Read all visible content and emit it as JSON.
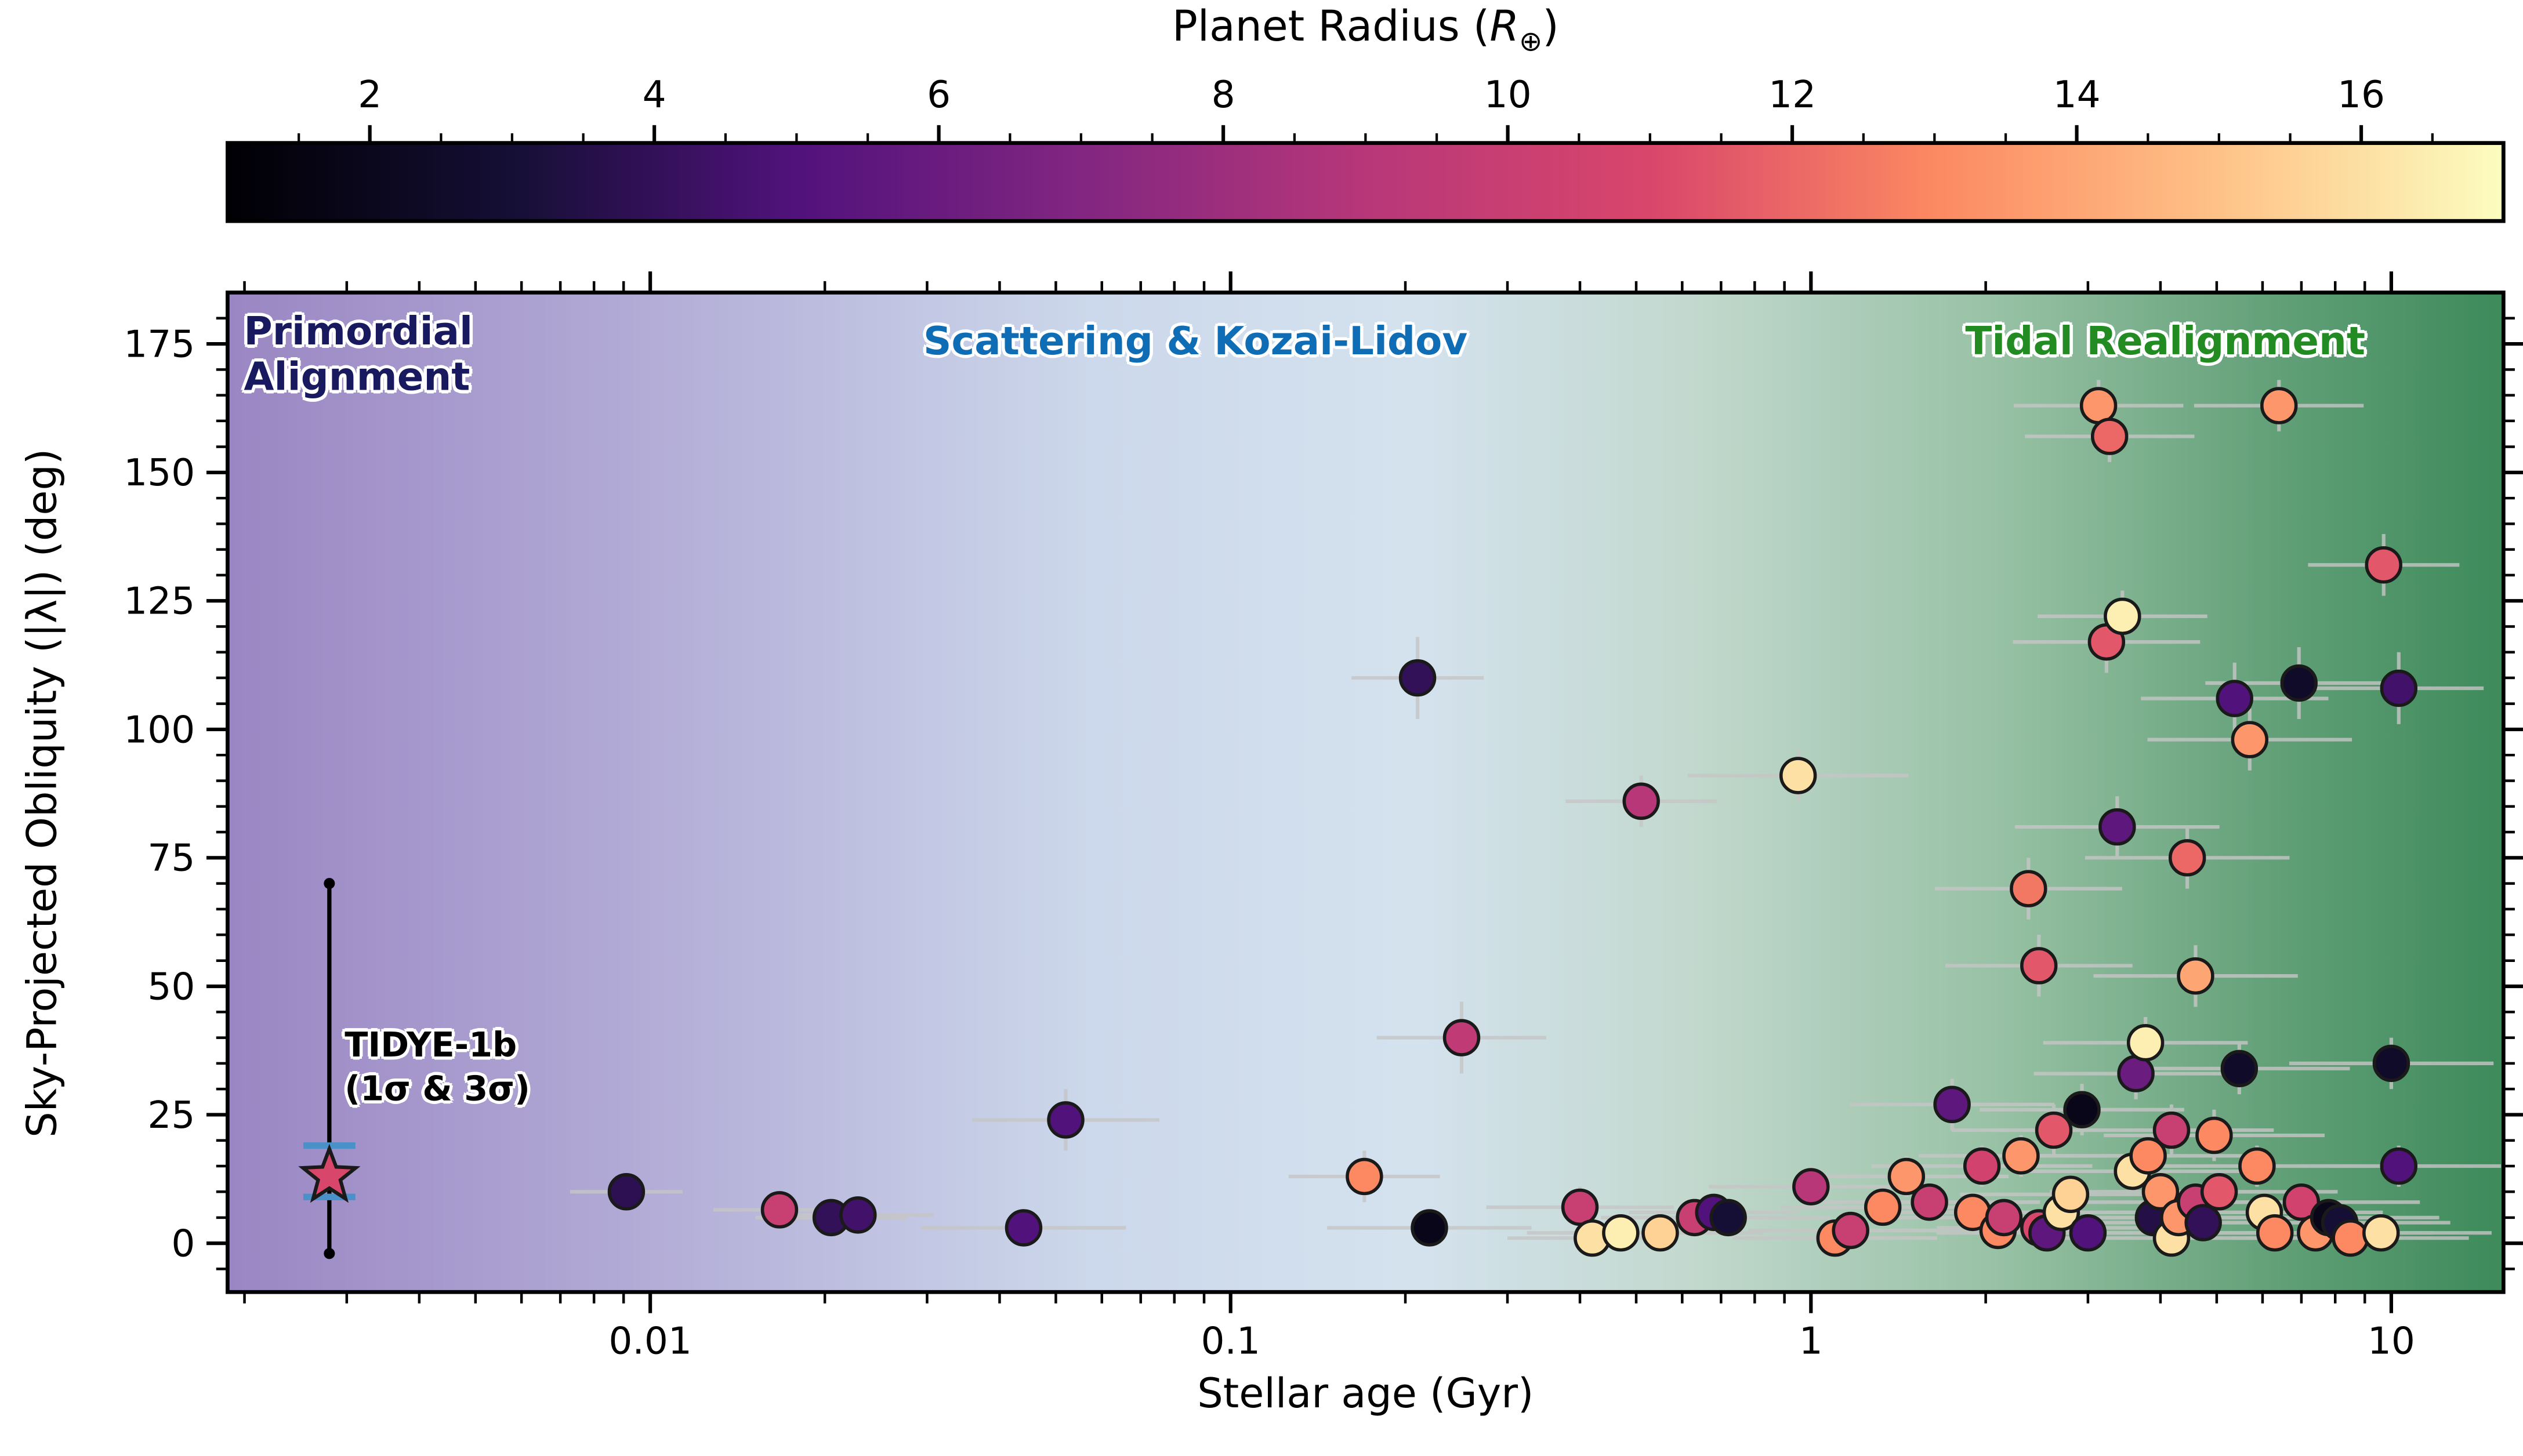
{
  "colorbar": {
    "title_pre": "Planet Radius (",
    "title_symbol": "R",
    "title_sub": "⊕",
    "title_post": ")",
    "ticks": [
      2,
      4,
      6,
      8,
      10,
      12,
      14,
      16
    ],
    "domain": [
      1,
      17
    ]
  },
  "axes": {
    "xlabel": "Stellar age (Gyr)",
    "ylabel": "Sky-Projected Obliquity (|λ|) (deg)"
  },
  "annotations": {
    "primordial": {
      "text": "Primordial\nAlignment",
      "color": "#191960"
    },
    "scattering": {
      "text": "Scattering & Kozai-Lidov",
      "color": "#0e6db4"
    },
    "tidal": {
      "text": "Tidal Realignment",
      "color": "#228B22"
    }
  },
  "highlight": {
    "label": "TIDYE-1b",
    "sublabel": "(1σ & 3σ)",
    "age": 0.0028,
    "obliquity": 13,
    "radius": 11,
    "sigma1_range": [
      9,
      19
    ],
    "sigma3_range": [
      -2,
      70
    ],
    "sigma1_color": "#4a90c9"
  },
  "chart_data": {
    "type": "scatter",
    "title": "",
    "xlabel": "Stellar age (Gyr)",
    "ylabel": "Sky-Projected Obliquity (|λ|) (deg)",
    "colorbar_label": "Planet Radius (R⊕)",
    "x_scale": "log",
    "xlim": [
      0.00187,
      15.6
    ],
    "ylim": [
      -9.5,
      185
    ],
    "x_ticks": [
      0.01,
      0.1,
      1,
      10
    ],
    "x_tick_labels": [
      "0.01",
      "0.1",
      "1",
      "10"
    ],
    "y_ticks": [
      0,
      25,
      50,
      75,
      100,
      125,
      150,
      175
    ],
    "color_domain": [
      1,
      17
    ],
    "colormap_magma": [
      [
        0,
        "#000004"
      ],
      [
        0.125,
        "#150f35"
      ],
      [
        0.25,
        "#51127c"
      ],
      [
        0.375,
        "#822681"
      ],
      [
        0.5,
        "#b73779"
      ],
      [
        0.625,
        "#d9466b"
      ],
      [
        0.75,
        "#fc8961"
      ],
      [
        0.875,
        "#fec287"
      ],
      [
        1,
        "#fcfdbf"
      ]
    ],
    "background_gradient": [
      [
        0,
        "#9a86c3"
      ],
      [
        0.18,
        "#b2abd6"
      ],
      [
        0.38,
        "#ccd8eb"
      ],
      [
        0.52,
        "#d4e2ee"
      ],
      [
        0.64,
        "#c3d9cf"
      ],
      [
        0.78,
        "#97c1a4"
      ],
      [
        0.9,
        "#62a078"
      ],
      [
        1,
        "#3d8a5a"
      ]
    ],
    "errorbar_color": "#c6c6c6",
    "points_format": "[age_gyr, obliquity_deg, radius_rearth, xerr_frac, yerr_deg]",
    "points": [
      [
        0.0091,
        10,
        3.8,
        0.25,
        3
      ],
      [
        0.0167,
        6.5,
        10,
        0.3,
        3
      ],
      [
        0.0205,
        5,
        4,
        0.35,
        3
      ],
      [
        0.0228,
        5.5,
        4.5,
        0.35,
        3
      ],
      [
        0.044,
        3,
        5,
        0.5,
        3
      ],
      [
        0.052,
        24,
        5,
        0.45,
        6
      ],
      [
        0.17,
        13,
        13,
        0.35,
        5
      ],
      [
        0.21,
        110,
        4,
        0.3,
        8
      ],
      [
        0.22,
        3,
        1.8,
        0.5,
        3
      ],
      [
        0.25,
        40,
        9.5,
        0.4,
        7
      ],
      [
        0.4,
        7,
        10,
        0.45,
        4
      ],
      [
        0.42,
        1,
        16,
        0.4,
        3
      ],
      [
        0.47,
        2,
        16.5,
        0.45,
        3
      ],
      [
        0.51,
        86,
        9,
        0.35,
        5
      ],
      [
        0.55,
        2,
        15.5,
        0.5,
        3
      ],
      [
        0.63,
        5,
        10,
        0.45,
        3
      ],
      [
        0.68,
        6,
        5,
        0.4,
        3
      ],
      [
        0.72,
        5,
        3,
        0.5,
        3
      ],
      [
        0.95,
        91,
        16,
        0.55,
        5
      ],
      [
        1.0,
        11,
        9,
        0.5,
        4
      ],
      [
        1.1,
        1,
        13,
        0.5,
        3
      ],
      [
        1.17,
        2.5,
        10,
        0.5,
        3
      ],
      [
        1.33,
        7,
        13,
        0.5,
        3
      ],
      [
        1.46,
        13,
        13.5,
        0.5,
        4
      ],
      [
        1.6,
        8,
        10,
        0.55,
        3
      ],
      [
        1.75,
        27,
        5.5,
        0.5,
        5
      ],
      [
        1.9,
        6,
        13,
        0.5,
        3
      ],
      [
        1.97,
        15,
        10.5,
        0.55,
        4
      ],
      [
        2.1,
        2.5,
        13,
        0.5,
        3
      ],
      [
        2.15,
        5,
        10,
        0.55,
        3
      ],
      [
        2.3,
        17,
        13.5,
        0.5,
        4
      ],
      [
        2.37,
        69,
        12.5,
        0.45,
        6
      ],
      [
        2.47,
        54,
        11.5,
        0.45,
        6
      ],
      [
        2.47,
        3,
        11,
        0.5,
        3
      ],
      [
        2.55,
        2,
        5.5,
        0.55,
        3
      ],
      [
        2.62,
        22,
        11.5,
        0.5,
        5
      ],
      [
        2.7,
        6,
        16,
        0.55,
        3
      ],
      [
        2.8,
        9.5,
        15.5,
        0.55,
        3
      ],
      [
        2.93,
        26,
        1.8,
        0.5,
        5
      ],
      [
        3.0,
        2,
        5,
        0.55,
        3
      ],
      [
        3.13,
        163,
        13.5,
        0.4,
        5
      ],
      [
        3.27,
        157,
        12,
        0.4,
        5
      ],
      [
        3.23,
        117,
        11.5,
        0.45,
        6
      ],
      [
        3.44,
        122,
        16.5,
        0.4,
        5
      ],
      [
        3.37,
        81,
        5.5,
        0.5,
        6
      ],
      [
        3.63,
        33,
        6,
        0.5,
        5
      ],
      [
        3.58,
        14,
        16,
        0.55,
        4
      ],
      [
        3.77,
        39,
        16.5,
        0.5,
        5
      ],
      [
        3.81,
        17,
        13,
        0.55,
        4
      ],
      [
        3.89,
        5,
        3.5,
        0.55,
        3
      ],
      [
        4.0,
        10,
        13.5,
        0.55,
        3
      ],
      [
        4.18,
        22,
        10,
        0.5,
        5
      ],
      [
        4.18,
        1,
        16,
        0.55,
        3
      ],
      [
        4.3,
        5,
        13.5,
        0.6,
        3
      ],
      [
        4.45,
        75,
        12,
        0.5,
        6
      ],
      [
        4.6,
        52,
        14,
        0.5,
        6
      ],
      [
        4.6,
        8,
        10,
        0.6,
        3
      ],
      [
        4.74,
        4,
        4,
        0.6,
        3
      ],
      [
        4.95,
        21,
        13,
        0.55,
        5
      ],
      [
        5.05,
        10,
        11.5,
        0.6,
        3
      ],
      [
        5.37,
        106,
        5,
        0.45,
        7
      ],
      [
        5.47,
        34,
        2.5,
        0.55,
        5
      ],
      [
        5.7,
        98,
        13.5,
        0.5,
        6
      ],
      [
        5.87,
        15,
        13,
        0.6,
        4
      ],
      [
        6.04,
        6,
        16,
        0.6,
        3
      ],
      [
        6.4,
        163,
        13.5,
        0.4,
        5
      ],
      [
        6.3,
        2,
        13,
        0.6,
        3
      ],
      [
        6.93,
        109,
        2.5,
        0.45,
        7
      ],
      [
        7.0,
        8,
        10.5,
        0.6,
        3
      ],
      [
        7.4,
        2,
        13.5,
        0.6,
        3
      ],
      [
        7.8,
        5,
        1.8,
        0.55,
        3
      ],
      [
        8.15,
        4,
        3,
        0.55,
        3
      ],
      [
        8.5,
        1,
        13,
        0.6,
        3
      ],
      [
        9.7,
        132,
        11.5,
        0.35,
        6
      ],
      [
        10.3,
        108,
        4.5,
        0.4,
        7
      ],
      [
        10.0,
        35,
        2.5,
        0.5,
        5
      ],
      [
        10.3,
        15,
        5,
        0.5,
        4
      ],
      [
        9.6,
        2,
        16,
        0.55,
        3
      ]
    ]
  }
}
